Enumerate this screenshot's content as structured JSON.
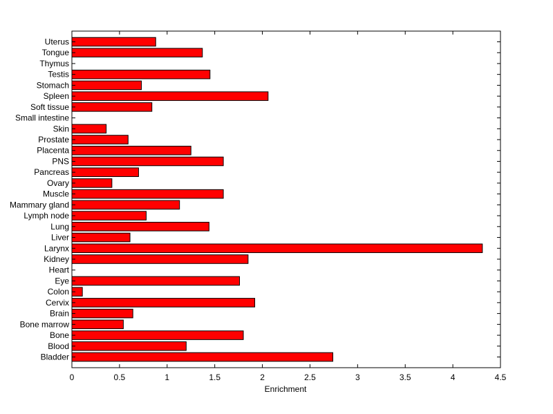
{
  "chart_data": {
    "type": "bar",
    "orientation": "horizontal",
    "categories": [
      "Bladder",
      "Blood",
      "Bone",
      "Bone marrow",
      "Brain",
      "Cervix",
      "Colon",
      "Eye",
      "Heart",
      "Kidney",
      "Larynx",
      "Liver",
      "Lung",
      "Lymph node",
      "Mammary gland",
      "Muscle",
      "Ovary",
      "Pancreas",
      "PNS",
      "Placenta",
      "Prostate",
      "Skin",
      "Small intestine",
      "Soft tissue",
      "Spleen",
      "Stomach",
      "Testis",
      "Thymus",
      "Tongue",
      "Uterus"
    ],
    "values": [
      2.74,
      1.2,
      1.8,
      0.54,
      0.64,
      1.92,
      0.11,
      1.76,
      0,
      1.85,
      4.31,
      0.61,
      1.44,
      0.78,
      1.13,
      1.59,
      0.42,
      0.7,
      1.59,
      1.25,
      0.59,
      0.36,
      0,
      0.84,
      2.06,
      0.73,
      1.45,
      0,
      1.37,
      0.88
    ],
    "xlabel": "Enrichment",
    "ylabel": "",
    "title": "",
    "xlim": [
      0,
      4.5
    ],
    "xticks": [
      "0",
      "0.5",
      "1",
      "1.5",
      "2",
      "2.5",
      "3",
      "3.5",
      "4",
      "4.5"
    ],
    "grid": false,
    "bar_color": "#ff0000",
    "edge_color": "#000000"
  }
}
